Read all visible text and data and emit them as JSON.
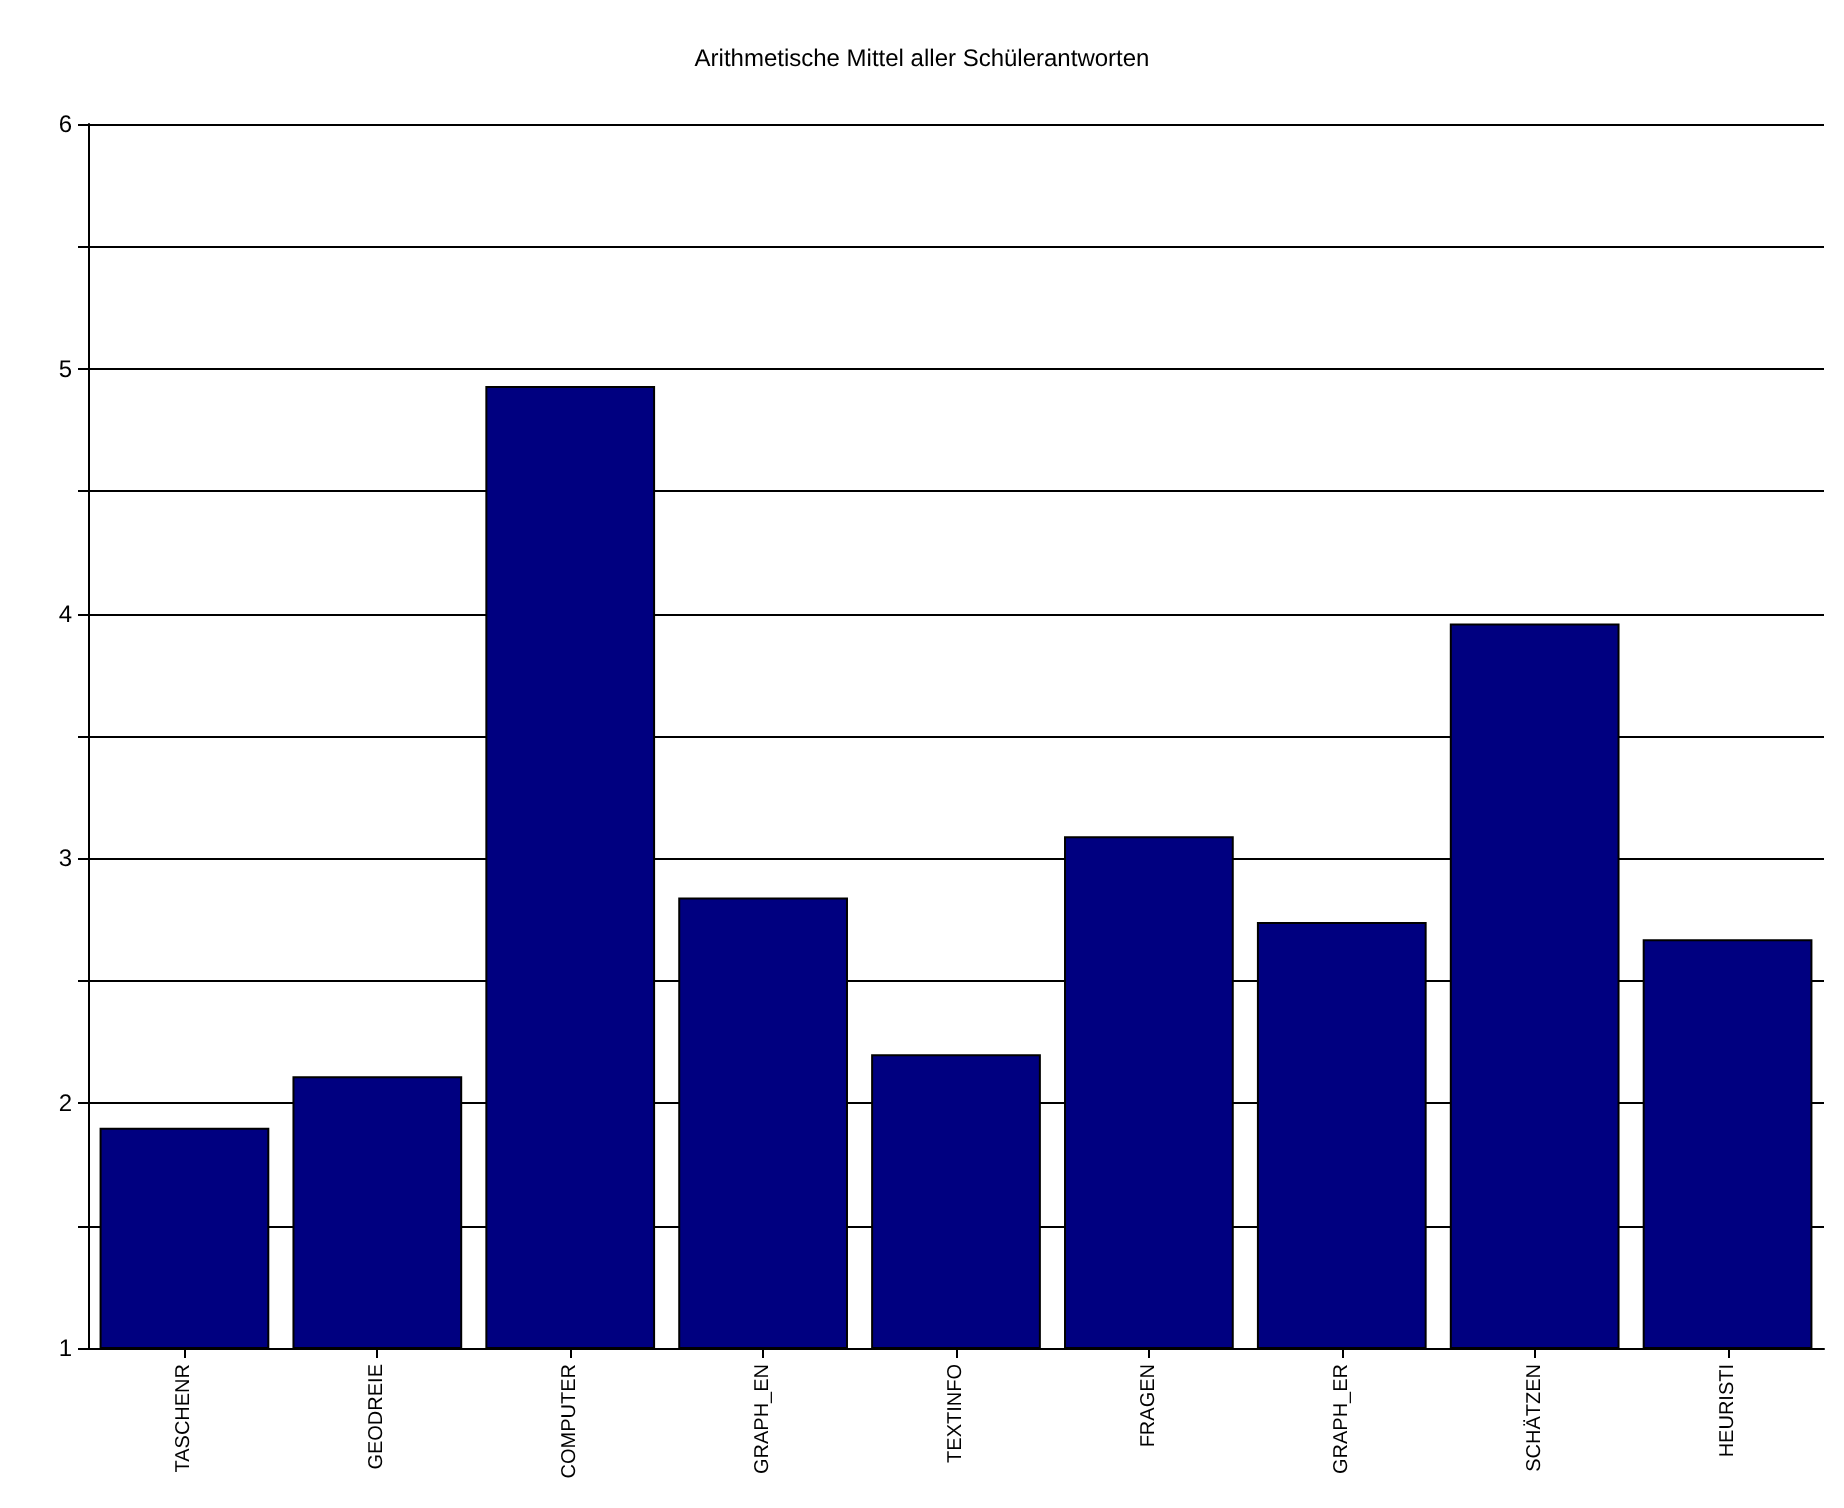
{
  "chart_data": {
    "type": "bar",
    "title": "Arithmetische Mittel aller Schülerantworten",
    "categories": [
      "TASCHENR",
      "GEODREIE",
      "COMPUTER",
      "GRAPH_EN",
      "TEXTINFO",
      "FRAGEN",
      "GRAPH_ER",
      "SCHÄTZEN",
      "HEURISTI"
    ],
    "values": [
      1.9,
      2.11,
      4.93,
      2.84,
      2.2,
      3.09,
      2.74,
      3.96,
      2.67
    ],
    "color": "#000080",
    "ylim": [
      1,
      6
    ],
    "yticks": [
      1,
      {
        "value": 1.5,
        "label": null
      },
      2,
      {
        "value": 2.5,
        "label": null
      },
      3,
      {
        "value": 3.5,
        "label": null
      },
      4,
      {
        "value": 4.5,
        "label": null
      },
      5,
      {
        "value": 5.5,
        "label": null
      },
      6
    ],
    "grid": "y"
  }
}
